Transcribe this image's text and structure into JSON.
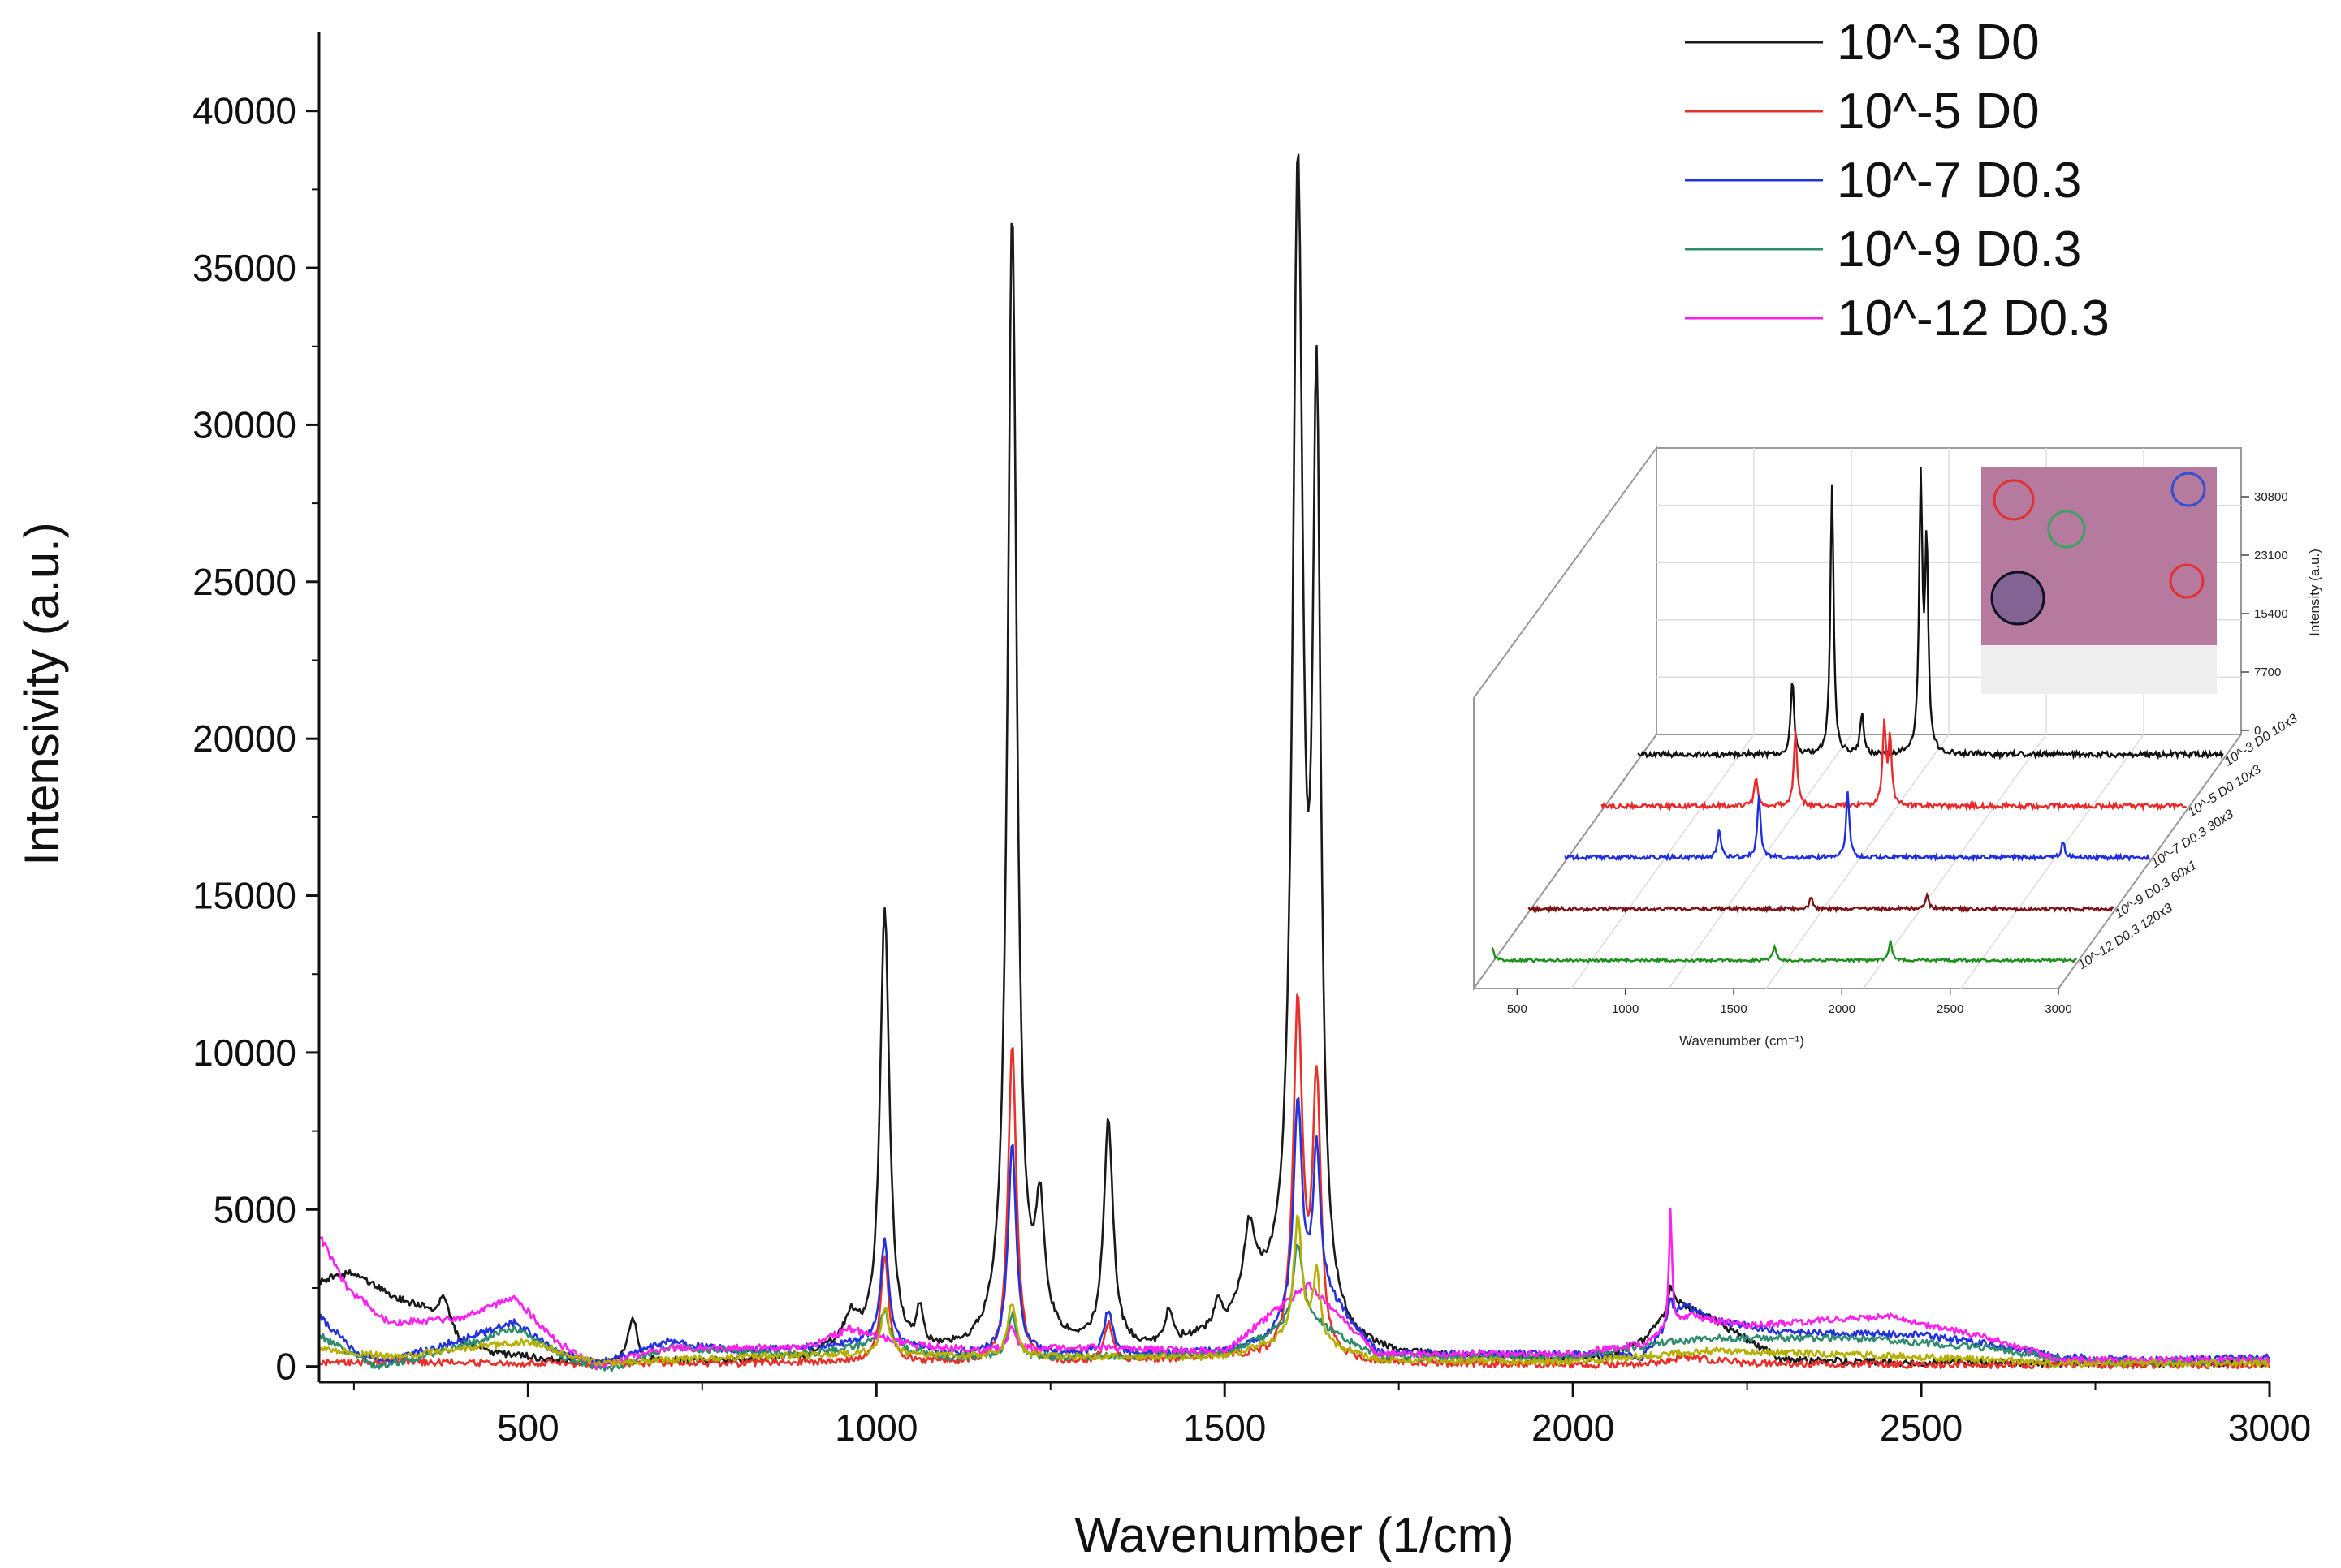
{
  "chart_data": [
    {
      "type": "line",
      "xlabel": "Wavenumber (1/cm)",
      "ylabel": "Intensivity (a.u.)",
      "xlim": [
        200,
        3000
      ],
      "ylim": [
        -500,
        42500
      ],
      "x_ticks": [
        500,
        1000,
        1500,
        2000,
        2500,
        3000
      ],
      "y_ticks": [
        0,
        5000,
        10000,
        15000,
        20000,
        25000,
        30000,
        35000,
        40000
      ],
      "legend_position": "top-right",
      "series": [
        {
          "name": "10^-3 D0",
          "color": "#1a1a1a",
          "baseline": [
            [
              200,
              2700
            ],
            [
              250,
              3000
            ],
            [
              300,
              2300
            ],
            [
              350,
              1800
            ],
            [
              400,
              700
            ],
            [
              450,
              400
            ],
            [
              500,
              300
            ],
            [
              550,
              150
            ],
            [
              600,
              80
            ],
            [
              700,
              150
            ],
            [
              800,
              150
            ],
            [
              900,
              250
            ],
            [
              950,
              700
            ],
            [
              1050,
              400
            ],
            [
              1150,
              400
            ],
            [
              1250,
              600
            ],
            [
              1300,
              500
            ],
            [
              1400,
              500
            ],
            [
              1500,
              1000
            ],
            [
              1550,
              1800
            ],
            [
              1680,
              500
            ],
            [
              1750,
              300
            ],
            [
              1900,
              250
            ],
            [
              2050,
              250
            ],
            [
              2100,
              800
            ],
            [
              2150,
              2000
            ],
            [
              2200,
              1500
            ],
            [
              2300,
              200
            ],
            [
              2500,
              100
            ],
            [
              2800,
              100
            ],
            [
              3000,
              100
            ]
          ],
          "peaks": [
            [
              380,
              1100,
              10
            ],
            [
              650,
              1500,
              7
            ],
            [
              965,
              800,
              10
            ],
            [
              1012,
              14000,
              8
            ],
            [
              1062,
              1200,
              5
            ],
            [
              1195,
              36200,
              8
            ],
            [
              1235,
              3800,
              8
            ],
            [
              1333,
              7200,
              8
            ],
            [
              1420,
              1000,
              6
            ],
            [
              1490,
              900,
              6
            ],
            [
              1535,
              2400,
              10
            ],
            [
              1605,
              35800,
              9
            ],
            [
              1632,
              27800,
              7
            ],
            [
              2140,
              700,
              5
            ]
          ]
        },
        {
          "name": "10^-5 D0",
          "color": "#e8312a",
          "baseline": [
            [
              200,
              100
            ],
            [
              300,
              150
            ],
            [
              500,
              100
            ],
            [
              800,
              100
            ],
            [
              1000,
              150
            ],
            [
              1100,
              100
            ],
            [
              1300,
              100
            ],
            [
              1500,
              300
            ],
            [
              1700,
              100
            ],
            [
              2000,
              50
            ],
            [
              2100,
              50
            ],
            [
              2160,
              300
            ],
            [
              2250,
              100
            ],
            [
              2500,
              50
            ],
            [
              3000,
              50
            ]
          ],
          "peaks": [
            [
              1012,
              3400,
              7
            ],
            [
              1195,
              10200,
              7
            ],
            [
              1333,
              1200,
              7
            ],
            [
              1605,
              11200,
              8
            ],
            [
              1632,
              8600,
              7
            ]
          ]
        },
        {
          "name": "10^-7 D0.3",
          "color": "#2233dd",
          "baseline": [
            [
              200,
              1600
            ],
            [
              260,
              300
            ],
            [
              300,
              200
            ],
            [
              380,
              700
            ],
            [
              480,
              1400
            ],
            [
              540,
              500
            ],
            [
              600,
              100
            ],
            [
              650,
              400
            ],
            [
              700,
              800
            ],
            [
              800,
              500
            ],
            [
              900,
              600
            ],
            [
              1000,
              800
            ],
            [
              1100,
              400
            ],
            [
              1300,
              400
            ],
            [
              1400,
              400
            ],
            [
              1500,
              500
            ],
            [
              1560,
              800
            ],
            [
              1640,
              2400
            ],
            [
              1720,
              400
            ],
            [
              1900,
              400
            ],
            [
              2000,
              400
            ],
            [
              2100,
              300
            ],
            [
              2160,
              2000
            ],
            [
              2200,
              1500
            ],
            [
              2300,
              1100
            ],
            [
              2500,
              1000
            ],
            [
              2600,
              700
            ],
            [
              2700,
              300
            ],
            [
              2850,
              200
            ],
            [
              3000,
              300
            ]
          ],
          "peaks": [
            [
              1012,
              3300,
              7
            ],
            [
              1195,
              6700,
              7
            ],
            [
              1333,
              1400,
              7
            ],
            [
              1605,
              6800,
              7
            ],
            [
              1632,
              4600,
              6
            ],
            [
              2140,
              700,
              4
            ]
          ]
        },
        {
          "name": "10^-9 D0.3",
          "color": "#2e8b6e",
          "baseline": [
            [
              200,
              1000
            ],
            [
              280,
              0
            ],
            [
              350,
              300
            ],
            [
              480,
              1200
            ],
            [
              560,
              200
            ],
            [
              620,
              -100
            ],
            [
              700,
              600
            ],
            [
              900,
              400
            ],
            [
              1000,
              700
            ],
            [
              1100,
              300
            ],
            [
              1300,
              300
            ],
            [
              1500,
              400
            ],
            [
              1620,
              1500
            ],
            [
              1720,
              300
            ],
            [
              2000,
              300
            ],
            [
              2140,
              800
            ],
            [
              2200,
              900
            ],
            [
              2400,
              900
            ],
            [
              2600,
              600
            ],
            [
              2700,
              200
            ],
            [
              2800,
              100
            ],
            [
              3000,
              200
            ]
          ],
          "peaks": [
            [
              1012,
              1200,
              7
            ],
            [
              1195,
              1400,
              7
            ],
            [
              1605,
              2600,
              8
            ]
          ]
        },
        {
          "name": "10^-12 D0.3",
          "color": "#ff22ee",
          "baseline": [
            [
              200,
              4200
            ],
            [
              240,
              2500
            ],
            [
              300,
              1400
            ],
            [
              400,
              1500
            ],
            [
              480,
              2200
            ],
            [
              540,
              800
            ],
            [
              600,
              0
            ],
            [
              700,
              600
            ],
            [
              900,
              600
            ],
            [
              960,
              1200
            ],
            [
              1050,
              700
            ],
            [
              1150,
              500
            ],
            [
              1300,
              600
            ],
            [
              1500,
              500
            ],
            [
              1620,
              2600
            ],
            [
              1720,
              400
            ],
            [
              2000,
              400
            ],
            [
              2100,
              700
            ],
            [
              2170,
              1600
            ],
            [
              2250,
              1300
            ],
            [
              2450,
              1600
            ],
            [
              2600,
              900
            ],
            [
              2700,
              200
            ],
            [
              3000,
              200
            ]
          ],
          "peaks": [
            [
              1195,
              800,
              6
            ],
            [
              2140,
              3800,
              2.5
            ]
          ]
        },
        {
          "name": "",
          "color": "#b5b000",
          "baseline": [
            [
              200,
              600
            ],
            [
              300,
              300
            ],
            [
              500,
              800
            ],
            [
              600,
              100
            ],
            [
              800,
              300
            ],
            [
              1000,
              400
            ],
            [
              1200,
              300
            ],
            [
              1500,
              300
            ],
            [
              1600,
              900
            ],
            [
              1720,
              200
            ],
            [
              2000,
              150
            ],
            [
              2200,
              500
            ],
            [
              2500,
              300
            ],
            [
              2700,
              100
            ],
            [
              3000,
              100
            ]
          ],
          "peaks": [
            [
              1012,
              1500,
              7
            ],
            [
              1195,
              1800,
              7
            ],
            [
              1605,
              3800,
              7
            ],
            [
              1632,
              2200,
              6
            ]
          ]
        }
      ]
    },
    {
      "type": "line",
      "inset": true,
      "xlabel": "Wavenumber (cm⁻¹)",
      "ylabel": "Intensity (a.u.)",
      "x_ticks": [
        "500",
        "1000",
        "1500",
        "2000",
        "2500",
        "3000"
      ],
      "z_ticks": [
        "0",
        "7700",
        "15400",
        "23100",
        "30800"
      ],
      "series": [
        {
          "name": "10^-3 D0 10x3",
          "color": "#111111",
          "peaks": [
            [
              1012,
              0.28
            ],
            [
              1195,
              1.0
            ],
            [
              1333,
              0.15
            ],
            [
              1605,
              1.0
            ],
            [
              1632,
              0.75
            ]
          ]
        },
        {
          "name": "10^-5 D0 10x3",
          "color": "#e82a2a",
          "peaks": [
            [
              1012,
              0.12
            ],
            [
              1195,
              0.32
            ],
            [
              1605,
              0.34
            ],
            [
              1632,
              0.28
            ]
          ]
        },
        {
          "name": "10^-7 D0.3 30x3",
          "color": "#1f2fe0",
          "peaks": [
            [
              1012,
              0.14
            ],
            [
              1195,
              0.3
            ],
            [
              1605,
              0.32
            ],
            [
              2600,
              0.08
            ]
          ]
        },
        {
          "name": "10^-9 D0.3 60x1",
          "color": "#7a1414",
          "peaks": [
            [
              1605,
              0.07
            ],
            [
              2140,
              0.08
            ]
          ]
        },
        {
          "name": "10^-12 D0.3 120x3",
          "color": "#1f8f1f",
          "peaks": [
            [
              300,
              0.1
            ],
            [
              1605,
              0.1
            ],
            [
              2140,
              0.14
            ]
          ]
        }
      ],
      "photo_circle_colors": [
        "#e03030",
        "#3050d0",
        "#40a060",
        "#e03030",
        "#101020"
      ]
    }
  ]
}
